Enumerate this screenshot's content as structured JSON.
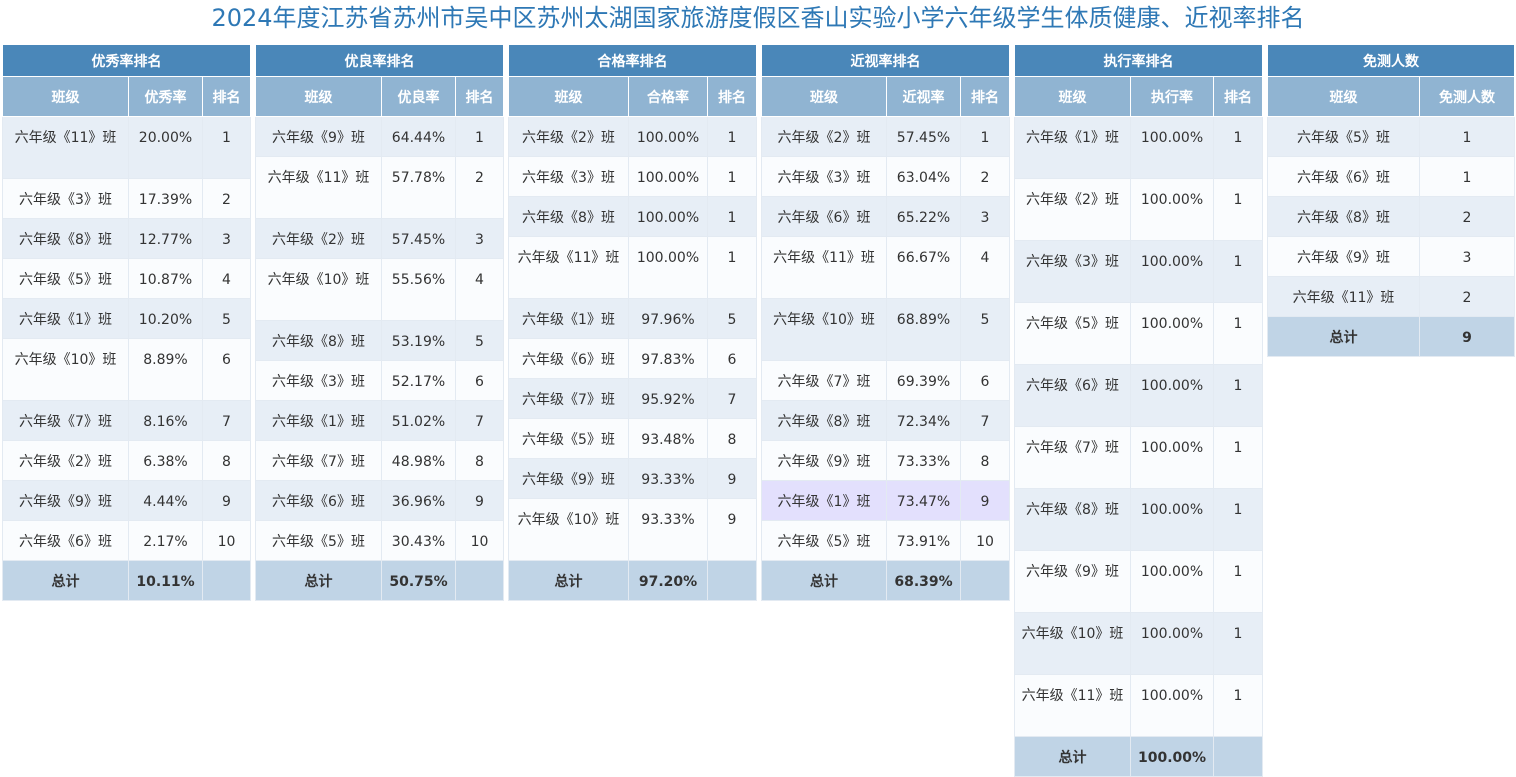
{
  "title": "2024年度江苏省苏州市吴中区苏州太湖国家旅游度假区香山实验小学六年级学生体质健康、近视率排名",
  "tables": [
    {
      "title": "优秀率排名",
      "headers": [
        "班级",
        "优秀率",
        "排名"
      ],
      "rows": [
        [
          "六年级《11》班",
          "20.00%",
          "1"
        ],
        [
          "六年级《3》班",
          "17.39%",
          "2"
        ],
        [
          "六年级《8》班",
          "12.77%",
          "3"
        ],
        [
          "六年级《5》班",
          "10.87%",
          "4"
        ],
        [
          "六年级《1》班",
          "10.20%",
          "5"
        ],
        [
          "六年级《10》班",
          "8.89%",
          "6"
        ],
        [
          "六年级《7》班",
          "8.16%",
          "7"
        ],
        [
          "六年级《2》班",
          "6.38%",
          "8"
        ],
        [
          "六年级《9》班",
          "4.44%",
          "9"
        ],
        [
          "六年级《6》班",
          "2.17%",
          "10"
        ]
      ],
      "total": [
        "总计",
        "10.11%",
        ""
      ]
    },
    {
      "title": "优良率排名",
      "headers": [
        "班级",
        "优良率",
        "排名"
      ],
      "rows": [
        [
          "六年级《9》班",
          "64.44%",
          "1"
        ],
        [
          "六年级《11》班",
          "57.78%",
          "2"
        ],
        [
          "六年级《2》班",
          "57.45%",
          "3"
        ],
        [
          "六年级《10》班",
          "55.56%",
          "4"
        ],
        [
          "六年级《8》班",
          "53.19%",
          "5"
        ],
        [
          "六年级《3》班",
          "52.17%",
          "6"
        ],
        [
          "六年级《1》班",
          "51.02%",
          "7"
        ],
        [
          "六年级《7》班",
          "48.98%",
          "8"
        ],
        [
          "六年级《6》班",
          "36.96%",
          "9"
        ],
        [
          "六年级《5》班",
          "30.43%",
          "10"
        ]
      ],
      "total": [
        "总计",
        "50.75%",
        ""
      ]
    },
    {
      "title": "合格率排名",
      "headers": [
        "班级",
        "合格率",
        "排名"
      ],
      "rows": [
        [
          "六年级《2》班",
          "100.00%",
          "1"
        ],
        [
          "六年级《3》班",
          "100.00%",
          "1"
        ],
        [
          "六年级《8》班",
          "100.00%",
          "1"
        ],
        [
          "六年级《11》班",
          "100.00%",
          "1"
        ],
        [
          "六年级《1》班",
          "97.96%",
          "5"
        ],
        [
          "六年级《6》班",
          "97.83%",
          "6"
        ],
        [
          "六年级《7》班",
          "95.92%",
          "7"
        ],
        [
          "六年级《5》班",
          "93.48%",
          "8"
        ],
        [
          "六年级《9》班",
          "93.33%",
          "9"
        ],
        [
          "六年级《10》班",
          "93.33%",
          "9"
        ]
      ],
      "total": [
        "总计",
        "97.20%",
        ""
      ]
    },
    {
      "title": "近视率排名",
      "headers": [
        "班级",
        "近视率",
        "排名"
      ],
      "rows": [
        [
          "六年级《2》班",
          "57.45%",
          "1"
        ],
        [
          "六年级《3》班",
          "63.04%",
          "2"
        ],
        [
          "六年级《6》班",
          "65.22%",
          "3"
        ],
        [
          "六年级《11》班",
          "66.67%",
          "4"
        ],
        [
          "六年级《10》班",
          "68.89%",
          "5"
        ],
        [
          "六年级《7》班",
          "69.39%",
          "6"
        ],
        [
          "六年级《8》班",
          "72.34%",
          "7"
        ],
        [
          "六年级《9》班",
          "73.33%",
          "8"
        ],
        [
          "六年级《1》班",
          "73.47%",
          "9"
        ],
        [
          "六年级《5》班",
          "73.91%",
          "10"
        ]
      ],
      "total": [
        "总计",
        "68.39%",
        ""
      ],
      "highlight_color": "#e3e0fd"
    },
    {
      "title": "执行率排名",
      "headers": [
        "班级",
        "执行率",
        "排名"
      ],
      "rows": [
        [
          "六年级《1》班",
          "100.00%",
          "1"
        ],
        [
          "六年级《2》班",
          "100.00%",
          "1"
        ],
        [
          "六年级《3》班",
          "100.00%",
          "1"
        ],
        [
          "六年级《5》班",
          "100.00%",
          "1"
        ],
        [
          "六年级《6》班",
          "100.00%",
          "1"
        ],
        [
          "六年级《7》班",
          "100.00%",
          "1"
        ],
        [
          "六年级《8》班",
          "100.00%",
          "1"
        ],
        [
          "六年级《9》班",
          "100.00%",
          "1"
        ],
        [
          "六年级《10》班",
          "100.00%",
          "1"
        ],
        [
          "六年级《11》班",
          "100.00%",
          "1"
        ]
      ],
      "total": [
        "总计",
        "100.00%",
        ""
      ]
    },
    {
      "title": "免测人数",
      "headers": [
        "班级",
        "免测人数"
      ],
      "rows": [
        [
          "六年级《5》班",
          "1"
        ],
        [
          "六年级《6》班",
          "1"
        ],
        [
          "六年级《8》班",
          "2"
        ],
        [
          "六年级《9》班",
          "3"
        ],
        [
          "六年级《11》班",
          "2"
        ]
      ],
      "total": [
        "总计",
        "9"
      ]
    }
  ],
  "colors": {
    "title": "#2e78b5",
    "header_dark": "#4a87b9",
    "header_light": "#90b4d2",
    "row_odd": "#e7eef6",
    "row_even": "#fafcfe",
    "total": "#c0d4e6",
    "highlight": "#e3e0fd"
  }
}
